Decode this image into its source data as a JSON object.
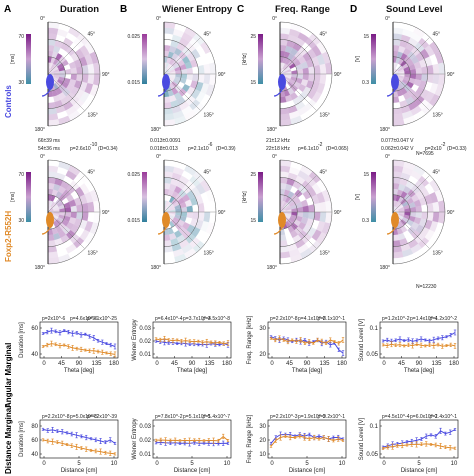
{
  "panel_letters": [
    "A",
    "B",
    "C",
    "D"
  ],
  "panel_titles": [
    "Duration",
    "Wiener Entropy",
    "Freq. Range",
    "Sound Level"
  ],
  "row_labels": [
    "Controls",
    "Foxp2-R552H",
    "Angular Marginal",
    "Distance Marginal"
  ],
  "colors": {
    "control": "#4a4ae0",
    "mutant": "#e08a28",
    "purple": "#7a1a86",
    "teal": "#3e8fa6"
  },
  "angle_labels": [
    "0°",
    "45°",
    "90°",
    "135°",
    "180°"
  ],
  "colorbars": [
    {
      "top": "70",
      "bottom": "30",
      "unit": "[ms]"
    },
    {
      "top": "0.025",
      "bottom": "0.015",
      "unit": ""
    },
    {
      "top": "25",
      "bottom": "15",
      "unit": "[kHz]"
    },
    {
      "top": "15",
      "bottom": "0.3",
      "unit": "[V]"
    }
  ],
  "stats": [
    {
      "ctrl": "66±39 ms",
      "mut": "54±36 ms",
      "p": "p=2.6x10",
      "pexp": "-10",
      "d": "(D=0.34)"
    },
    {
      "ctrl": "0.013±0.0091",
      "mut": "0.018±0.013",
      "p": "p=2.1x10",
      "pexp": "-6",
      "d": "(D=0.39)"
    },
    {
      "ctrl": "21±12 kHz",
      "mut": "22±18 kHz",
      "p": "p=6.1x10",
      "pexp": "-2",
      "d": "(D=0.065)"
    },
    {
      "ctrl": "0.077±0.047 V",
      "mut": "0.062±0.042 V",
      "p": "p=2x10",
      "pexp": "-2",
      "d": "(D=0.33)"
    }
  ],
  "n_labels": [
    "N=7695",
    "N=12230"
  ],
  "angular": {
    "xlabel": "Theta [deg]",
    "xticks": [
      "0",
      "45",
      "90",
      "135",
      "180"
    ],
    "panels": [
      {
        "ylabel": "Duration [ms]",
        "yticks": [
          "60",
          "40"
        ],
        "ylim": [
          28,
          78
        ],
        "annot": "p=3.1x10^-25",
        "annot_c": "p=2x10^-6",
        "annot_m": "p=4.6x10^-6",
        "ctrl": [
          62,
          64,
          66,
          65,
          63,
          66,
          64,
          62,
          63,
          60,
          61,
          58,
          56,
          52,
          50,
          48,
          46,
          44
        ],
        "mut": [
          44,
          46,
          48,
          47,
          45,
          46,
          44,
          42,
          41,
          40,
          39,
          38,
          38,
          37,
          36,
          35,
          34,
          33
        ]
      },
      {
        "ylabel": "Wiener Entropy",
        "yticks": [
          "0.03",
          "0.02",
          "0.01"
        ],
        "ylim": [
          0.005,
          0.035
        ],
        "annot": "p=4.5x10^-8",
        "annot_c": "p=6.4x10^-4",
        "annot_m": "p=3.7x10^-3",
        "ctrl": [
          0.019,
          0.0185,
          0.018,
          0.0175,
          0.018,
          0.017,
          0.0175,
          0.017,
          0.0165,
          0.017,
          0.016,
          0.0165,
          0.016,
          0.017,
          0.0165,
          0.016,
          0.017,
          0.016
        ],
        "mut": [
          0.021,
          0.02,
          0.021,
          0.02,
          0.0195,
          0.02,
          0.019,
          0.0195,
          0.019,
          0.0185,
          0.019,
          0.018,
          0.0185,
          0.018,
          0.0175,
          0.018,
          0.017,
          0.0175
        ]
      },
      {
        "ylabel": "Freq. Range [kHz]",
        "yticks": [
          "30",
          "20"
        ],
        "ylim": [
          13,
          35
        ],
        "annot": "p=8.1x10^-1",
        "annot_c": "p=2.2x10^-8",
        "annot_m": "p=4.1x10^-2",
        "ctrl": [
          26,
          25,
          24,
          25,
          24,
          23,
          24,
          23,
          24,
          22,
          23,
          24,
          22,
          23,
          21,
          22,
          18,
          16
        ],
        "mut": [
          25,
          24,
          25,
          24,
          23,
          24,
          23,
          24,
          22,
          23,
          22,
          24,
          23,
          22,
          24,
          23,
          22,
          24
        ]
      },
      {
        "ylabel": "Sound Level [V]",
        "yticks": [
          "0.1",
          "0.05"
        ],
        "ylim": [
          0.02,
          0.13
        ],
        "annot": "p=1.2x10^-2",
        "annot_c": "p=1.2x10^-2",
        "annot_m": "p=1.4x10^-4",
        "ctrl": [
          0.072,
          0.075,
          0.07,
          0.074,
          0.078,
          0.073,
          0.076,
          0.071,
          0.074,
          0.078,
          0.075,
          0.072,
          0.076,
          0.08,
          0.082,
          0.085,
          0.09,
          0.098
        ],
        "mut": [
          0.06,
          0.058,
          0.062,
          0.059,
          0.061,
          0.057,
          0.06,
          0.058,
          0.062,
          0.059,
          0.057,
          0.06,
          0.058,
          0.061,
          0.056,
          0.058,
          0.06,
          0.057
        ]
      }
    ]
  },
  "distance": {
    "xlabel": "Distance [cm]",
    "xticks": [
      "0",
      "5",
      "10"
    ],
    "panels": [
      {
        "ylabel": "Duration [ms]",
        "yticks": [
          "80",
          "60",
          "40"
        ],
        "ylim": [
          25,
          90
        ],
        "annot": "p=4.2x10^-39",
        "annot_c": "p=2.2x10^-8",
        "annot_m": "p=5.0x10^-5",
        "ctrl": [
          74,
          72,
          73,
          71,
          70,
          68,
          66,
          64,
          62,
          60,
          58,
          56,
          54,
          52,
          56,
          50
        ],
        "mut": [
          56,
          54,
          53,
          52,
          50,
          48,
          46,
          44,
          42,
          40,
          38,
          37,
          36,
          34,
          33,
          32
        ]
      },
      {
        "ylabel": "Wiener Entropy",
        "yticks": [
          "0.03",
          "0.02",
          "0.01"
        ],
        "ylim": [
          0.005,
          0.035
        ],
        "annot": "p=1.4x10^-7",
        "annot_c": "p=7.8x10^-2",
        "annot_m": "p=5.1x10^-5",
        "ctrl": [
          0.017,
          0.0172,
          0.017,
          0.0168,
          0.017,
          0.0165,
          0.0168,
          0.0165,
          0.017,
          0.0166,
          0.0168,
          0.0165,
          0.0167,
          0.0164,
          0.0166,
          0.0165
        ],
        "mut": [
          0.019,
          0.0192,
          0.019,
          0.0188,
          0.019,
          0.0186,
          0.0189,
          0.0187,
          0.019,
          0.0188,
          0.0186,
          0.0189,
          0.0187,
          0.0186,
          0.022,
          0.0188
        ]
      },
      {
        "ylabel": "Freq. Range [kHz]",
        "yticks": [
          "30",
          "20",
          "10"
        ],
        "ylim": [
          8,
          34
        ],
        "annot": "p=9.2x10^-1",
        "annot_c": "p=2.2x10^-3",
        "annot_m": "p=1.9x10^-3",
        "ctrl": [
          18,
          22,
          24,
          24,
          24,
          23,
          24,
          23,
          24,
          22,
          23,
          22,
          21,
          22,
          22,
          21
        ],
        "mut": [
          16,
          20,
          22,
          23,
          22,
          22,
          23,
          22,
          21,
          22,
          21,
          22,
          21,
          20,
          21,
          20
        ]
      },
      {
        "ylabel": "Sound Level [V]",
        "yticks": [
          "0.1",
          "0.05"
        ],
        "ylim": [
          0.02,
          0.16
        ],
        "annot": "p=1.4x10^-1",
        "annot_c": "p=4.5x10^-4",
        "annot_m": "p=6.0x10^-2",
        "ctrl": [
          0.06,
          0.065,
          0.07,
          0.072,
          0.075,
          0.08,
          0.082,
          0.085,
          0.09,
          0.1,
          0.105,
          0.1,
          0.12,
          0.11,
          0.115,
          0.125
        ],
        "mut": [
          0.055,
          0.06,
          0.062,
          0.065,
          0.066,
          0.068,
          0.07,
          0.07,
          0.071,
          0.072,
          0.07,
          0.068,
          0.064,
          0.06,
          0.058,
          0.056
        ]
      }
    ]
  },
  "chart_data": [
    {
      "type": "heatmap",
      "title": "Duration",
      "subtitle": "Controls / Foxp2-R552H polar maps",
      "colorbar": [
        "30",
        "70"
      ],
      "unit": "[ms]"
    },
    {
      "type": "heatmap",
      "title": "Wiener Entropy",
      "colorbar": [
        "0.015",
        "0.025"
      ]
    },
    {
      "type": "heatmap",
      "title": "Freq. Range",
      "colorbar": [
        "15",
        "25"
      ],
      "unit": "[kHz]"
    },
    {
      "type": "heatmap",
      "title": "Sound Level",
      "colorbar": [
        "0.3",
        "15"
      ],
      "unit": "[V]"
    },
    {
      "type": "line",
      "title": "",
      "xlabel": "Theta [deg]",
      "x": [
        0,
        10,
        20,
        30,
        40,
        50,
        60,
        70,
        80,
        90,
        100,
        110,
        120,
        130,
        140,
        150,
        160,
        170
      ],
      "series": [],
      "note": "Angular marginals (see angular.panels)"
    },
    {
      "type": "line",
      "title": "",
      "xlabel": "Distance [cm]",
      "x": [
        0,
        1,
        2,
        3,
        4,
        5,
        6,
        7,
        8,
        9,
        10,
        11,
        12,
        13,
        14,
        15
      ],
      "series": [],
      "note": "Distance marginals (see distance.panels)"
    }
  ]
}
